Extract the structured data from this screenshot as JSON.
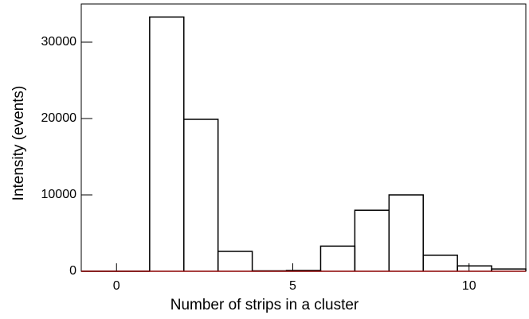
{
  "chart_data": {
    "type": "histogram",
    "xlabel": "Number of strips in a cluster",
    "ylabel": "Intensity (events)",
    "bins": [
      -1,
      -0.03,
      0.94,
      1.91,
      2.88,
      3.85,
      4.82,
      5.79,
      6.76,
      7.73,
      8.7,
      9.67,
      10.64,
      11.61
    ],
    "values": [
      0,
      0,
      33300,
      19900,
      2600,
      50,
      100,
      3300,
      8000,
      10000,
      2100,
      700,
      300
    ],
    "color": "#000000",
    "axis_color": "#8b0000",
    "xlim": [
      -1,
      11.61
    ],
    "xticks": [
      0,
      5,
      10
    ],
    "ylim": [
      0,
      35000
    ],
    "yticks": [
      0,
      10000,
      20000,
      30000
    ]
  }
}
